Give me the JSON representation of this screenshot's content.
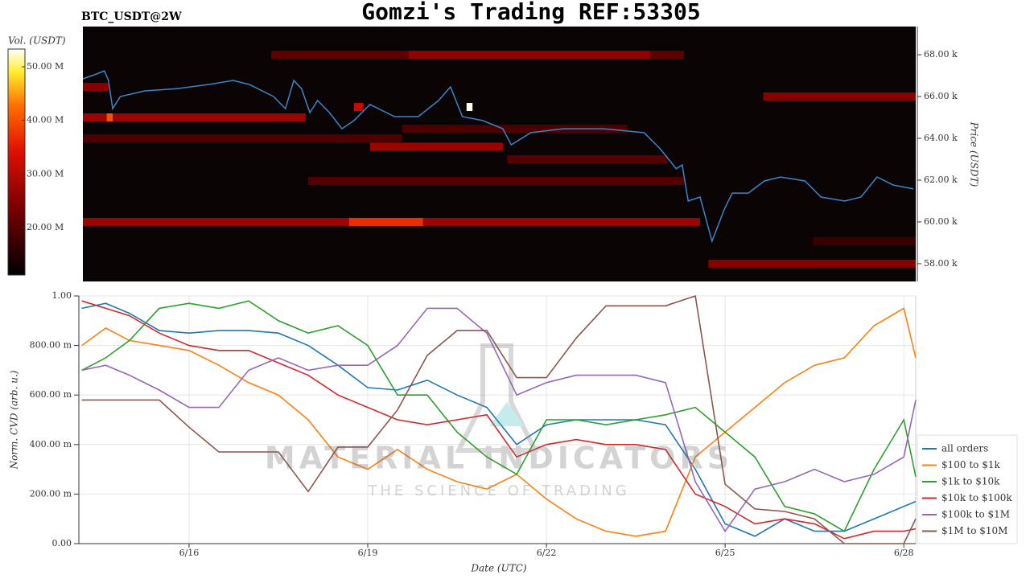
{
  "header": {
    "title": "Gomzi's Trading REF:53305"
  },
  "watermark": {
    "name": "MATERIAL INDICATORS",
    "tagline": "THE SCIENCE OF TRADING"
  },
  "chart_data": [
    {
      "type": "heatmap",
      "title": "BTC_USDT@2W",
      "colorbar_label": "Vol. (USDT)",
      "y_label": "Price (USDT)",
      "colormap": "hot",
      "xlim": [
        14.22,
        28.2
      ],
      "ylim": [
        57150,
        69350
      ],
      "yticks": [
        {
          "value": 58000,
          "label": "58.00 k"
        },
        {
          "value": 60000,
          "label": "60.00 k"
        },
        {
          "value": 62000,
          "label": "62.00 k"
        },
        {
          "value": 64000,
          "label": "64.00 k"
        },
        {
          "value": 66000,
          "label": "66.00 k"
        },
        {
          "value": 68000,
          "label": "68.00 k"
        }
      ],
      "vlim": [
        11150000,
        53300000
      ],
      "vticks": [
        {
          "value": 20000000,
          "label": "20.00 M"
        },
        {
          "value": 30000000,
          "label": "30.00 M"
        },
        {
          "value": 40000000,
          "label": "40.00 M"
        },
        {
          "value": 50000000,
          "label": "50.00 M"
        }
      ],
      "cells": [
        {
          "x": [
            17.38,
            24.31
          ],
          "price": 68000,
          "volume": 21000000
        },
        {
          "x": [
            19.69,
            23.74
          ],
          "price": 68000,
          "volume": 26000000
        },
        {
          "x": [
            25.64,
            28.2
          ],
          "price": 66000,
          "volume": 25000000
        },
        {
          "x": [
            14.22,
            17.96
          ],
          "price": 65000,
          "volume": 27000000
        },
        {
          "x": [
            14.62,
            14.72
          ],
          "price": 65000,
          "volume": 40000000
        },
        {
          "x": [
            14.22,
            14.65
          ],
          "price": 66460,
          "volume": 25000000
        },
        {
          "x": [
            18.77,
            18.93
          ],
          "price": 65500,
          "volume": 31000000
        },
        {
          "x": [
            20.66,
            20.76
          ],
          "price": 65500,
          "volume": 53000000
        },
        {
          "x": [
            19.04,
            21.27
          ],
          "price": 63600,
          "volume": 27000000
        },
        {
          "x": [
            14.22,
            24.58
          ],
          "price": 60000,
          "volume": 27000000
        },
        {
          "x": [
            18.69,
            19.93
          ],
          "price": 60000,
          "volume": 37000000
        },
        {
          "x": [
            24.72,
            28.2
          ],
          "price": 58000,
          "volume": 25000000
        },
        {
          "x": [
            18.0,
            24.31
          ],
          "price": 61960,
          "volume": 20000000
        },
        {
          "x": [
            21.34,
            24.04
          ],
          "price": 63000,
          "volume": 20000000
        },
        {
          "x": [
            14.22,
            19.58
          ],
          "price": 64000,
          "volume": 19000000
        },
        {
          "x": [
            26.47,
            28.2
          ],
          "price": 59080,
          "volume": 17000000
        },
        {
          "x": [
            19.58,
            23.36
          ],
          "price": 64460,
          "volume": 19000000
        }
      ],
      "price_line": {
        "color": "#3a86c8",
        "x": [
          14.22,
          14.45,
          14.58,
          14.65,
          14.72,
          14.85,
          15.26,
          15.8,
          16.34,
          16.74,
          17.01,
          17.42,
          17.62,
          17.76,
          17.89,
          18.03,
          18.16,
          18.36,
          18.57,
          18.77,
          19.04,
          19.45,
          19.85,
          20.19,
          20.39,
          20.59,
          20.93,
          21.27,
          21.41,
          21.74,
          22.28,
          22.96,
          23.64,
          23.91,
          24.18,
          24.28,
          24.38,
          24.58,
          24.78,
          24.99,
          25.12,
          25.39,
          25.66,
          25.93,
          26.34,
          26.61,
          27.01,
          27.28,
          27.55,
          27.82,
          28.16
        ],
        "values": [
          66850,
          67080,
          67230,
          66770,
          65420,
          66000,
          66270,
          66380,
          66580,
          66770,
          66580,
          66000,
          65420,
          66770,
          66380,
          65230,
          65810,
          65230,
          64460,
          64850,
          65620,
          65040,
          65040,
          65810,
          66460,
          65040,
          64850,
          64460,
          63690,
          64270,
          64460,
          64460,
          64270,
          63500,
          62540,
          62730,
          61000,
          61190,
          59080,
          60620,
          61380,
          61380,
          61960,
          62150,
          61960,
          61190,
          61000,
          61190,
          62150,
          61770,
          61580
        ]
      }
    },
    {
      "type": "line",
      "y_label": "Norm. CVD (arb. u.)",
      "x_label": "Date (UTC)",
      "grid": true,
      "legend": "lower right",
      "xlim": [
        14.15,
        28.2
      ],
      "ylim": [
        0,
        1
      ],
      "xticks": [
        {
          "value": 16,
          "label": "6/16"
        },
        {
          "value": 19,
          "label": "6/19"
        },
        {
          "value": 22,
          "label": "6/22"
        },
        {
          "value": 25,
          "label": "6/25"
        },
        {
          "value": 28,
          "label": "6/28"
        }
      ],
      "yticks": [
        {
          "value": 0,
          "label": "0.00"
        },
        {
          "value": 0.2,
          "label": "200.00 m"
        },
        {
          "value": 0.4,
          "label": "400.00 m"
        },
        {
          "value": 0.6,
          "label": "600.00 m"
        },
        {
          "value": 0.8,
          "label": "800.00 m"
        },
        {
          "value": 1,
          "label": "1.00"
        }
      ],
      "x": [
        14.2,
        14.6,
        15,
        15.5,
        16,
        16.5,
        17,
        17.5,
        18,
        18.5,
        19,
        19.5,
        20,
        20.5,
        21,
        21.5,
        22,
        22.5,
        23,
        23.5,
        24,
        24.5,
        25,
        25.5,
        26,
        26.5,
        27,
        27.5,
        28,
        28.2
      ],
      "series": [
        {
          "name": "all orders",
          "color": "#1f77b4",
          "values": [
            0.95,
            0.97,
            0.93,
            0.86,
            0.85,
            0.86,
            0.86,
            0.85,
            0.8,
            0.72,
            0.63,
            0.62,
            0.66,
            0.6,
            0.55,
            0.4,
            0.48,
            0.5,
            0.5,
            0.5,
            0.48,
            0.3,
            0.08,
            0.03,
            0.1,
            0.05,
            0.05,
            0.1,
            0.15,
            0.17
          ]
        },
        {
          "name": "$100 to $1k",
          "color": "#ff7f0e",
          "values": [
            0.8,
            0.87,
            0.82,
            0.8,
            0.78,
            0.72,
            0.65,
            0.6,
            0.5,
            0.35,
            0.3,
            0.38,
            0.3,
            0.25,
            0.22,
            0.28,
            0.18,
            0.1,
            0.05,
            0.03,
            0.05,
            0.35,
            0.45,
            0.55,
            0.65,
            0.72,
            0.75,
            0.88,
            0.95,
            0.75
          ]
        },
        {
          "name": "$1k to $10k",
          "color": "#2ca02c",
          "values": [
            0.7,
            0.75,
            0.82,
            0.95,
            0.97,
            0.95,
            0.98,
            0.9,
            0.85,
            0.88,
            0.8,
            0.6,
            0.6,
            0.45,
            0.35,
            0.28,
            0.5,
            0.5,
            0.48,
            0.5,
            0.52,
            0.55,
            0.45,
            0.35,
            0.15,
            0.12,
            0.05,
            0.3,
            0.5,
            0.27
          ]
        },
        {
          "name": "$10k to $100k",
          "color": "#d62728",
          "values": [
            0.98,
            0.95,
            0.92,
            0.85,
            0.8,
            0.78,
            0.78,
            0.73,
            0.68,
            0.6,
            0.55,
            0.5,
            0.48,
            0.5,
            0.52,
            0.35,
            0.4,
            0.42,
            0.4,
            0.4,
            0.38,
            0.2,
            0.15,
            0.08,
            0.1,
            0.08,
            0.02,
            0.05,
            0.05,
            0.06
          ]
        },
        {
          "name": "$100k to $1M",
          "color": "#9467bd",
          "values": [
            0.7,
            0.72,
            0.68,
            0.62,
            0.55,
            0.55,
            0.7,
            0.75,
            0.7,
            0.72,
            0.72,
            0.8,
            0.95,
            0.95,
            0.85,
            0.6,
            0.65,
            0.68,
            0.68,
            0.68,
            0.65,
            0.25,
            0.05,
            0.22,
            0.25,
            0.3,
            0.25,
            0.28,
            0.35,
            0.58
          ]
        },
        {
          "name": "$1M to $10M",
          "color": "#8c564b",
          "values": [
            0.58,
            0.58,
            0.58,
            0.58,
            0.47,
            0.37,
            0.37,
            0.37,
            0.21,
            0.39,
            0.39,
            0.54,
            0.76,
            0.86,
            0.86,
            0.67,
            0.67,
            0.83,
            0.96,
            0.96,
            0.96,
            1,
            0.24,
            0.14,
            0.13,
            0.1,
            0,
            0,
            0,
            0.1
          ]
        }
      ]
    }
  ]
}
